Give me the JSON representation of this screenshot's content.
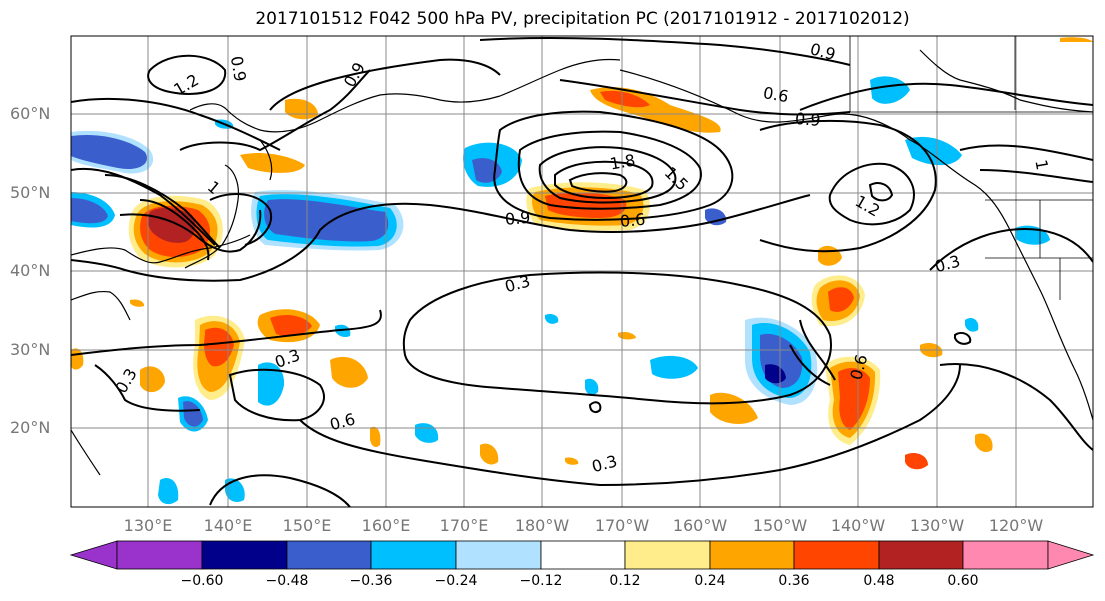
{
  "title": "2017101512 F042 500 hPa PV, precipitation PC (2017101912 - 2017102012)",
  "lat_labels": [
    "60°N",
    "50°N",
    "40°N",
    "30°N",
    "20°N"
  ],
  "lon_labels": [
    "130°E",
    "140°E",
    "150°E",
    "160°E",
    "170°E",
    "180°W",
    "170°W",
    "160°W",
    "150°W",
    "140°W",
    "130°W",
    "120°W"
  ],
  "pv_contour_labels": [
    "1.2",
    "0.9",
    "0.9",
    "0.6",
    "0.9",
    "1.8",
    "1.5",
    "1.2",
    "0.9",
    "0.9",
    "0.6",
    "0.3",
    "0.3",
    "0.3",
    "0.6",
    "0.3",
    "0.3",
    "0.6",
    "1",
    "1"
  ],
  "colorbar": {
    "ticks": [
      "−0.60",
      "−0.48",
      "−0.36",
      "−0.24",
      "−0.12",
      "0.12",
      "0.24",
      "0.36",
      "0.48",
      "0.60"
    ],
    "colors": [
      "#9933cc",
      "#00008b",
      "#3a5fcd",
      "#00bfff",
      "#b0e2ff",
      "#ffffff",
      "#ffec8b",
      "#ffa500",
      "#ff4500",
      "#b22222",
      "#ff88b0"
    ]
  },
  "colors": {
    "grid": "#888888",
    "contour": "#000000",
    "coast": "#000000"
  }
}
